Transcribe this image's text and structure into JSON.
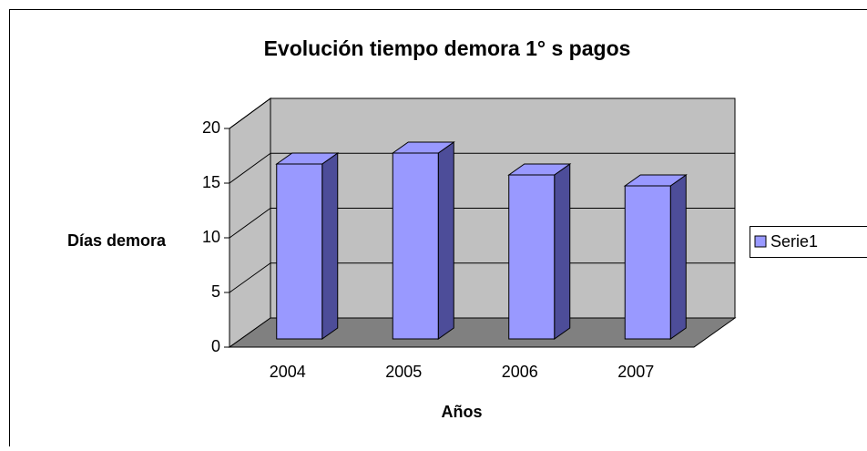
{
  "chart_data": {
    "type": "bar3d",
    "title": "Evolución tiempo demora 1° s pagos",
    "x_label": "Años",
    "y_label": "Días demora",
    "categories": [
      "2004",
      "2005",
      "2006",
      "2007"
    ],
    "series": [
      {
        "name": "Serie1",
        "color": "#9999ff",
        "values": [
          16,
          17,
          15,
          14
        ]
      }
    ],
    "ylim": [
      0,
      20
    ],
    "yticks": [
      0,
      5,
      10,
      15,
      20
    ],
    "grid": true,
    "legend": "right"
  }
}
